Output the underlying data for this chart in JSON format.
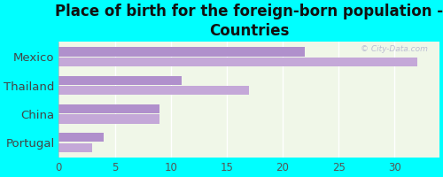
{
  "title": "Place of birth for the foreign-born population -\nCountries",
  "categories": [
    "Mexico",
    "Thailand",
    "China",
    "Portugal"
  ],
  "values1": [
    32,
    17,
    9,
    3
  ],
  "values2": [
    22,
    11,
    9,
    4
  ],
  "bar_color1": "#c4a8d8",
  "bar_color2": "#b090cc",
  "background_color": "#00ffff",
  "plot_bg_top": "#f0f7e8",
  "plot_bg_bottom": "#e8f5e0",
  "xlim": [
    0,
    34
  ],
  "xticks": [
    0,
    5,
    10,
    15,
    20,
    25,
    30
  ],
  "bar_height": 0.32,
  "bar_gap": 0.04,
  "title_fontsize": 12,
  "tick_fontsize": 8.5,
  "label_fontsize": 9.5
}
